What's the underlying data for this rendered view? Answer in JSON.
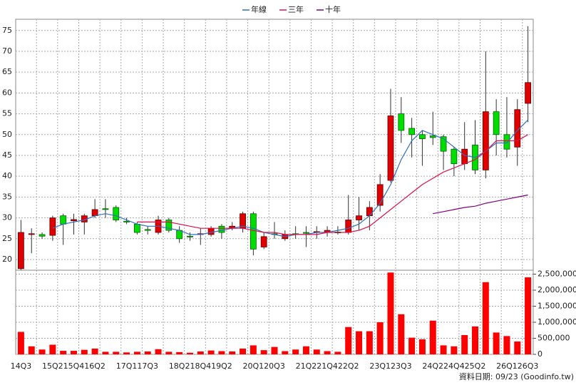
{
  "chart_data": {
    "type": "candlestick",
    "categories": [
      "14Q3",
      null,
      null,
      "15Q2",
      null,
      "15Q4",
      null,
      "16Q2",
      null,
      null,
      "17Q1",
      null,
      "17Q3",
      null,
      null,
      "18Q2",
      null,
      "18Q4",
      null,
      "19Q2",
      null,
      null,
      "20Q1",
      null,
      "20Q3",
      null,
      null,
      "21Q2",
      null,
      "21Q4",
      null,
      "22Q2",
      null,
      null,
      "23Q1",
      null,
      "23Q3",
      null,
      null,
      "24Q2",
      null,
      "24Q4",
      null,
      "25Q2",
      null,
      null,
      "26Q1",
      null,
      "26Q3"
    ],
    "open": [
      17.8,
      26,
      26,
      25.8,
      30.5,
      29.3,
      29,
      30.5,
      32.2,
      32.5,
      29.2,
      28.5,
      27.2,
      26.5,
      29.5,
      27,
      25.6,
      26,
      26,
      28,
      27.5,
      27.5,
      31,
      23,
      26.2,
      25,
      26.2,
      26.5,
      26.5,
      26.5,
      26.6,
      26.5,
      29.5,
      30.5,
      33,
      39,
      55,
      51.5,
      50,
      49.7,
      49.5,
      46.5,
      43,
      47.5,
      41.5,
      55.5,
      50,
      47,
      57.5
    ],
    "high": [
      29.5,
      27.5,
      26.5,
      30.5,
      31,
      31,
      31,
      34.5,
      34.5,
      33,
      30,
      29,
      28,
      30.5,
      30,
      28,
      26.5,
      27.5,
      28,
      28.5,
      29,
      31.5,
      31.5,
      26.5,
      29,
      27,
      28,
      28,
      28,
      28,
      28,
      35.5,
      35,
      34,
      40.5,
      61,
      59,
      54,
      51,
      55.5,
      50,
      47,
      53,
      53.5,
      70,
      58.5,
      59,
      58.5,
      76
    ],
    "low": [
      17.5,
      21.5,
      25,
      24.5,
      23.5,
      26,
      26,
      30,
      30,
      29,
      28.5,
      26,
      26,
      26,
      26.5,
      24,
      24.5,
      23.5,
      25.5,
      25,
      27,
      26.5,
      21,
      22.5,
      25,
      24.5,
      25,
      23,
      25,
      25.5,
      26,
      26,
      27,
      27,
      31.5,
      38.5,
      48,
      44.5,
      42.5,
      47.5,
      41.5,
      40,
      41.5,
      40.5,
      39.5,
      45,
      44.5,
      42.5,
      53
    ],
    "close": [
      26.5,
      26.2,
      25.6,
      30,
      28.5,
      29.6,
      30.5,
      32,
      32,
      29.5,
      29,
      26.5,
      27,
      29.5,
      27,
      25,
      25.4,
      26.2,
      27.5,
      26.5,
      28,
      31,
      22.5,
      25.5,
      26,
      26,
      26,
      26.3,
      26.7,
      27,
      26.4,
      29.5,
      30.5,
      32.5,
      38,
      54.5,
      51,
      50,
      49,
      49.3,
      46,
      43,
      46.5,
      41.5,
      55.5,
      50,
      46.5,
      56,
      62.5
    ],
    "up_color": "#e00000",
    "down_color": "#00dd00",
    "series": [
      {
        "name": "年線",
        "color": "#2f6fc0",
        "values": [
          null,
          null,
          null,
          27.5,
          28.5,
          29,
          29.5,
          30.5,
          31,
          30.5,
          29.5,
          28.5,
          28,
          28,
          27.5,
          27,
          26,
          26,
          26.5,
          27,
          27.5,
          28,
          27.5,
          26.5,
          26,
          25.5,
          26,
          26,
          26.5,
          26.5,
          27,
          27.5,
          28.5,
          30.5,
          33.5,
          38,
          44,
          48.5,
          51,
          50,
          49,
          47,
          45,
          44.5,
          46,
          48,
          48,
          51,
          53.5
        ]
      },
      {
        "name": "三年",
        "color": "#e0104a",
        "values": [
          null,
          null,
          null,
          null,
          null,
          null,
          null,
          null,
          null,
          null,
          null,
          29,
          29,
          29,
          29,
          28.5,
          28,
          27.5,
          27.5,
          27.5,
          27.5,
          27.5,
          27,
          26.5,
          26.5,
          26,
          26,
          26,
          26,
          26.5,
          26.5,
          26.5,
          27,
          28,
          30,
          32,
          34,
          36,
          38,
          39.5,
          41,
          42,
          43,
          44,
          46,
          48.5,
          48.5,
          48.5,
          50
        ]
      },
      {
        "name": "十年",
        "color": "#800080",
        "values": [
          null,
          null,
          null,
          null,
          null,
          null,
          null,
          null,
          null,
          null,
          null,
          null,
          null,
          null,
          null,
          null,
          null,
          null,
          null,
          null,
          null,
          null,
          null,
          null,
          null,
          null,
          null,
          null,
          null,
          null,
          null,
          null,
          null,
          null,
          null,
          null,
          null,
          null,
          null,
          31,
          31.5,
          32,
          32.5,
          32.8,
          33.5,
          34,
          34.5,
          35,
          35.5
        ]
      }
    ],
    "volume": {
      "color": "#ff0000",
      "axis": "y2",
      "values": [
        700000,
        250000,
        150000,
        300000,
        110000,
        110000,
        140000,
        180000,
        80000,
        80000,
        60000,
        80000,
        90000,
        160000,
        80000,
        70000,
        50000,
        90000,
        120000,
        100000,
        90000,
        180000,
        280000,
        130000,
        230000,
        100000,
        150000,
        250000,
        150000,
        100000,
        80000,
        850000,
        720000,
        720000,
        1000000,
        2550000,
        1250000,
        520000,
        470000,
        1050000,
        280000,
        250000,
        600000,
        870000,
        2250000,
        680000,
        570000,
        400000,
        2400000
      ]
    },
    "ylim": [
      17.6,
      77.7
    ],
    "yticks": [
      20,
      25,
      30,
      35,
      40,
      45,
      50,
      55,
      60,
      65,
      70,
      75
    ],
    "y2lim": [
      0,
      2600000
    ],
    "y2ticks": [
      0,
      {
        "value": 500000,
        "label": "500,000"
      },
      {
        "value": 1000000,
        "label": "1,000,000"
      },
      {
        "value": 1500000,
        "label": "1,500,000"
      },
      {
        "value": 2000000,
        "label": "2,000,000"
      },
      {
        "value": 2500000,
        "label": "2,500,000"
      }
    ],
    "grid": true,
    "footer": "資料日期: 09/23 (Goodinfo.tw)"
  }
}
